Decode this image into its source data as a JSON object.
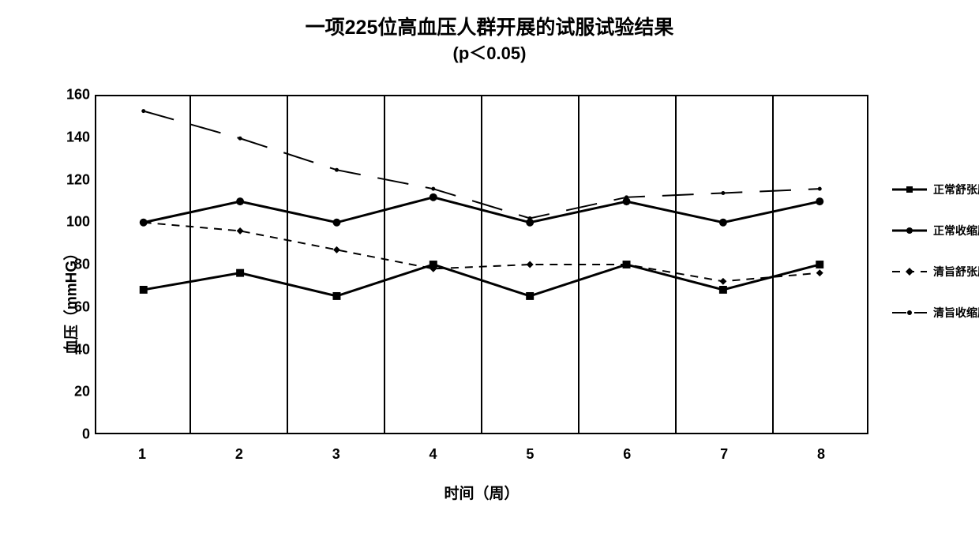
{
  "chart": {
    "type": "line",
    "title_line1": "一项225位高血压人群开展的试服试验结果",
    "title_line2": "(p＜0.05)",
    "title_fontsize": 25,
    "ylabel": "血压（mmHG）",
    "xlabel": "时间（周）",
    "label_fontsize": 19,
    "tick_fontsize": 18,
    "background_color": "#ffffff",
    "border_color": "#000000",
    "x_categories": [
      "1",
      "2",
      "3",
      "4",
      "5",
      "6",
      "7",
      "8"
    ],
    "ylim": [
      0,
      160
    ],
    "y_ticks": [
      0,
      20,
      40,
      60,
      80,
      100,
      120,
      140,
      160
    ],
    "series": [
      {
        "name": "正常舒张压",
        "legend_label": "正常舒张压",
        "values": [
          68,
          76,
          65,
          80,
          65,
          80,
          68,
          80
        ],
        "color": "#000000",
        "line_width": 3,
        "marker": "square",
        "marker_size": 10,
        "dash": "solid"
      },
      {
        "name": "正常收缩压",
        "legend_label": "正常收缩压",
        "values": [
          100,
          110,
          100,
          112,
          100,
          110,
          100,
          110
        ],
        "color": "#000000",
        "line_width": 3,
        "marker": "circle",
        "marker_size": 10,
        "dash": "solid"
      },
      {
        "name": "清旨舒张压",
        "legend_label": "清旨舒张压",
        "values": [
          100,
          96,
          87,
          78,
          80,
          80,
          72,
          76
        ],
        "color": "#000000",
        "line_width": 2,
        "marker": "diamond",
        "marker_size": 9,
        "dash": "dash"
      },
      {
        "name": "清旨收缩压",
        "legend_label": "清旨收缩压",
        "values": [
          153,
          140,
          125,
          116,
          102,
          112,
          114,
          116
        ],
        "color": "#000000",
        "line_width": 2,
        "marker": "dot",
        "marker_size": 5,
        "dash": "longdash"
      }
    ],
    "legend": {
      "position": "right",
      "fontsize": 14
    }
  }
}
